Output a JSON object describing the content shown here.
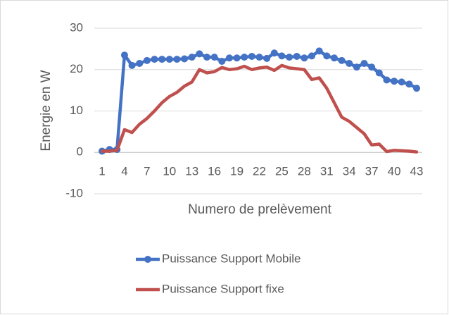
{
  "chart_data": {
    "type": "line",
    "x_label": "Numero de prelèvement",
    "y_label": "Energie en W",
    "categories": [
      "1",
      null,
      null,
      "4",
      null,
      null,
      "7",
      null,
      null,
      "10",
      null,
      null,
      "13",
      null,
      null,
      "16",
      null,
      null,
      "19",
      null,
      null,
      "22",
      null,
      null,
      "25",
      null,
      null,
      "28",
      null,
      null,
      "31",
      null,
      null,
      "34",
      null,
      null,
      "37",
      null,
      null,
      "40",
      null,
      null,
      "43"
    ],
    "series": [
      {
        "name": "Puissance Support Mobile",
        "color": "#4472c4",
        "marker": "circle",
        "values": [
          0.3,
          0.7,
          0.7,
          23.5,
          21,
          21.5,
          22.2,
          22.5,
          22.5,
          22.5,
          22.5,
          22.6,
          23,
          23.8,
          23,
          23,
          22,
          22.8,
          22.8,
          23,
          23.2,
          23,
          22.7,
          24,
          23.3,
          23,
          23.2,
          22.8,
          23.3,
          24.5,
          23.3,
          22.8,
          22.2,
          21.5,
          20.6,
          21.5,
          20.6,
          19.2,
          17.5,
          17.2,
          17,
          16.5,
          15.5
        ]
      },
      {
        "name": "Puissance Support fixe",
        "color": "#c0504d",
        "marker": "none",
        "values": [
          0.3,
          0.3,
          0.5,
          5.5,
          4.8,
          6.8,
          8.2,
          10,
          12,
          13.5,
          14.5,
          16,
          17,
          20,
          19.2,
          19.5,
          20.5,
          20,
          20.2,
          20.8,
          20,
          20.4,
          20.6,
          19.8,
          21,
          20.4,
          20.2,
          20,
          17.6,
          18,
          15.5,
          12,
          8.5,
          7.5,
          6,
          4.5,
          1.8,
          2,
          0.2,
          0.5,
          0.4,
          0.3,
          0.1
        ]
      }
    ],
    "ylim": [
      -10,
      30
    ],
    "yticks": [
      -10,
      0,
      10,
      20,
      30
    ],
    "grid": true,
    "legend": "bottom"
  }
}
